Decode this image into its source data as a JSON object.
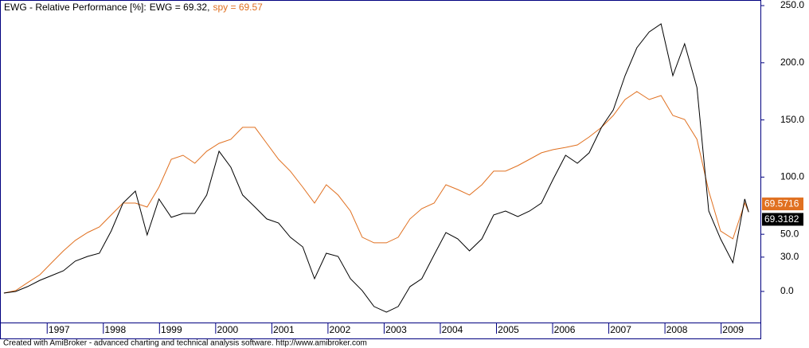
{
  "chart_data": {
    "type": "line",
    "title": "EWG - Relative Performance [%]:",
    "legend_separator": " = ",
    "footer": "Created with AmiBroker - advanced charting and technical analysis software. http://www.amibroker.com",
    "x": [
      1996.23,
      1996.44,
      1996.65,
      1996.87,
      1997.08,
      1997.29,
      1997.5,
      1997.72,
      1997.93,
      1998.14,
      1998.35,
      1998.57,
      1998.78,
      1998.99,
      1999.21,
      1999.42,
      1999.63,
      1999.84,
      2000.06,
      2000.27,
      2000.48,
      2000.7,
      2000.91,
      2001.12,
      2001.33,
      2001.55,
      2001.76,
      2001.97,
      2002.18,
      2002.4,
      2002.61,
      2002.82,
      2003.04,
      2003.25,
      2003.46,
      2003.67,
      2003.89,
      2004.1,
      2004.31,
      2004.52,
      2004.74,
      2004.95,
      2005.16,
      2005.38,
      2005.59,
      2005.8,
      2006.01,
      2006.23,
      2006.44,
      2006.65,
      2006.87,
      2007.08,
      2007.29,
      2007.5,
      2007.72,
      2007.93,
      2008.14,
      2008.35,
      2008.57,
      2008.78,
      2008.99,
      2009.21,
      2009.42,
      2009.49
    ],
    "series": [
      {
        "name": "EWG",
        "legend_value": 69.32,
        "end_label": "69.3182",
        "color": "#000000",
        "values": [
          -1.4,
          0,
          4.2,
          9.7,
          13.9,
          18.1,
          26.5,
          30.6,
          33.4,
          52.9,
          77.3,
          87.7,
          49.4,
          80.8,
          64.8,
          68.2,
          68.2,
          84.3,
          122.6,
          108.6,
          84.3,
          73.8,
          63.4,
          59.9,
          47.4,
          39.0,
          11.1,
          33.4,
          30.6,
          11.1,
          0.7,
          -13.2,
          -18.1,
          -13.2,
          4.2,
          11.1,
          32.0,
          51.5,
          46.0,
          35.5,
          46.0,
          66.9,
          70.3,
          65.5,
          70.3,
          77.3,
          98.2,
          119.1,
          112.1,
          121.2,
          143.5,
          158.8,
          188.7,
          213.1,
          227.0,
          234.0,
          188.7,
          216.6,
          178.3,
          70.3,
          46.0,
          25.1,
          80.8,
          69.32
        ]
      },
      {
        "name": "spy",
        "legend_value": 69.57,
        "end_label": "69.5716",
        "color": "#e07020",
        "values": [
          -1.4,
          0.7,
          7.7,
          14.6,
          25.1,
          35.5,
          44.6,
          51.5,
          56.4,
          66.9,
          77.3,
          77.3,
          73.8,
          91.2,
          115.6,
          119.1,
          112.1,
          122.6,
          129.5,
          133.0,
          143.5,
          143.5,
          129.5,
          115.6,
          105.2,
          91.2,
          77.3,
          93.3,
          84.3,
          70.3,
          47.4,
          42.5,
          42.5,
          47.4,
          63.4,
          72.4,
          77.3,
          93.3,
          89.1,
          84.3,
          93.3,
          105.2,
          105.2,
          110.0,
          115.6,
          121.2,
          124.0,
          126.0,
          128.1,
          135.1,
          143.5,
          153.9,
          167.8,
          174.8,
          167.8,
          171.3,
          153.9,
          150.4,
          133.0,
          87.7,
          52.9,
          46.0,
          77.3,
          69.57
        ]
      }
    ],
    "xlim": [
      1996.16,
      2009.7
    ],
    "xticks": [
      1997,
      1998,
      1999,
      2000,
      2001,
      2002,
      2003,
      2004,
      2005,
      2006,
      2007,
      2008,
      2009
    ],
    "ylim": [
      -27.2,
      254.9
    ],
    "yticks": [
      {
        "value": 0,
        "label": "0.0"
      },
      {
        "value": 30,
        "label": "30.0"
      },
      {
        "value": 50,
        "label": "50.0"
      },
      {
        "value": 100,
        "label": "100.0"
      },
      {
        "value": 150,
        "label": "150.0"
      },
      {
        "value": 200,
        "label": "200.0"
      },
      {
        "value": 250,
        "label": "250.0"
      }
    ],
    "grid": false
  }
}
